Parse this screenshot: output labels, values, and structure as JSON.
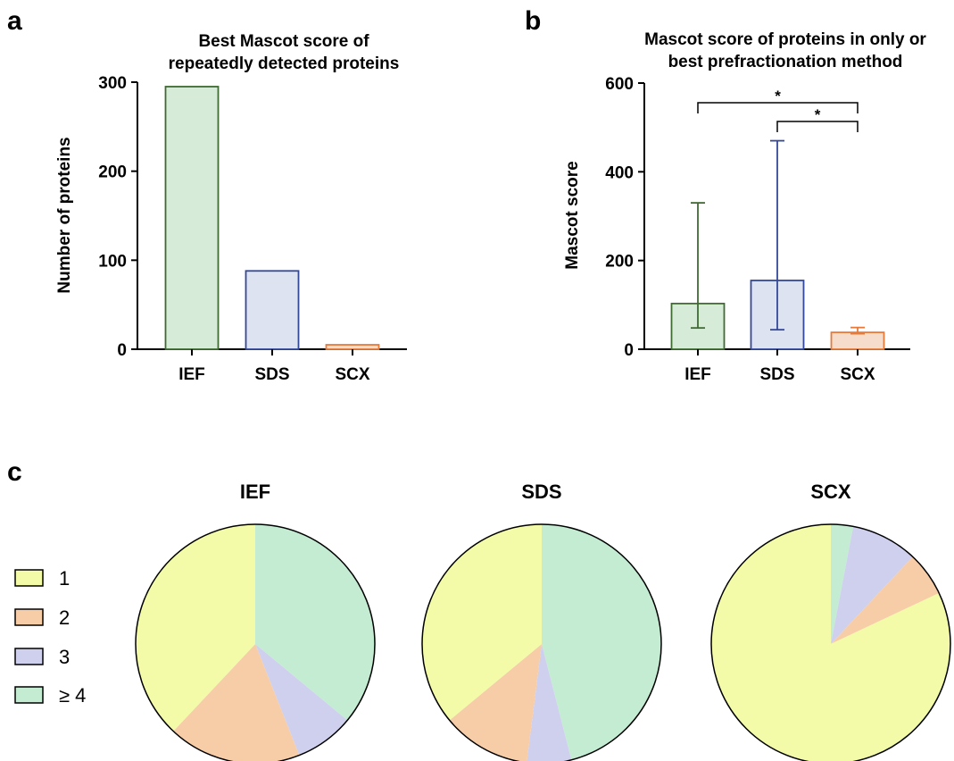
{
  "panel_labels": {
    "a": "a",
    "b": "b",
    "c": "c"
  },
  "chart_data": [
    {
      "type": "bar",
      "title": "Best Mascot score of repeatedly detected proteins",
      "title_lines": [
        "Best Mascot score of",
        "repeatedly detected proteins"
      ],
      "categories": [
        "IEF",
        "SDS",
        "SCX"
      ],
      "values": [
        295,
        88,
        5
      ],
      "xlabel": "",
      "ylabel": "Number of proteins",
      "ylim": [
        0,
        300
      ],
      "yticks": [
        "0",
        "100",
        "200",
        "300"
      ],
      "colors": {
        "fill": [
          "#d6ebd8",
          "#dde3f1",
          "#f6dccb"
        ],
        "stroke": [
          "#3f6b32",
          "#34489a",
          "#e57a3a"
        ]
      }
    },
    {
      "type": "bar",
      "title": "Mascot score of proteins in only or best prefractionation method",
      "title_lines": [
        "Mascot score of proteins in only or",
        "best prefractionation method"
      ],
      "categories": [
        "IEF",
        "SDS",
        "SCX"
      ],
      "values": [
        103,
        155,
        38
      ],
      "error_low": [
        48,
        44,
        35
      ],
      "error_high": [
        330,
        470,
        49
      ],
      "xlabel": "",
      "ylabel": "Mascot score",
      "ylim": [
        0,
        600
      ],
      "yticks": [
        "0",
        "200",
        "400",
        "600"
      ],
      "significance": [
        {
          "from": "IEF",
          "to": "SCX",
          "label": "*"
        },
        {
          "from": "SDS",
          "to": "SCX",
          "label": "*"
        }
      ],
      "colors": {
        "fill": [
          "#d6ebd8",
          "#dde3f1",
          "#f6dccb"
        ],
        "stroke": [
          "#3f6b32",
          "#34489a",
          "#e57a3a"
        ]
      }
    },
    {
      "type": "pie",
      "title": "IEF",
      "labels": [
        "≥ 4",
        "3",
        "2",
        "1"
      ],
      "values": [
        36,
        8,
        18,
        38
      ]
    },
    {
      "type": "pie",
      "title": "SDS",
      "labels": [
        "≥ 4",
        "3",
        "2",
        "1"
      ],
      "values": [
        46,
        6,
        12,
        36
      ]
    },
    {
      "type": "pie",
      "title": "SCX",
      "labels": [
        "≥ 4",
        "3",
        "2",
        "1"
      ],
      "values": [
        3,
        9,
        6,
        82
      ]
    }
  ],
  "legend": {
    "placement": "left",
    "items": [
      {
        "label": "1",
        "color": "#f3fba8"
      },
      {
        "label": "2",
        "color": "#f7cda8"
      },
      {
        "label": "3",
        "color": "#cfd0ee"
      },
      {
        "label": "≥ 4",
        "color": "#c4ecd3"
      }
    ]
  },
  "pie_colors": {
    "≥ 4": "#c4ecd3",
    "3": "#cfd0ee",
    "2": "#f7cda8",
    "1": "#f3fba8"
  }
}
